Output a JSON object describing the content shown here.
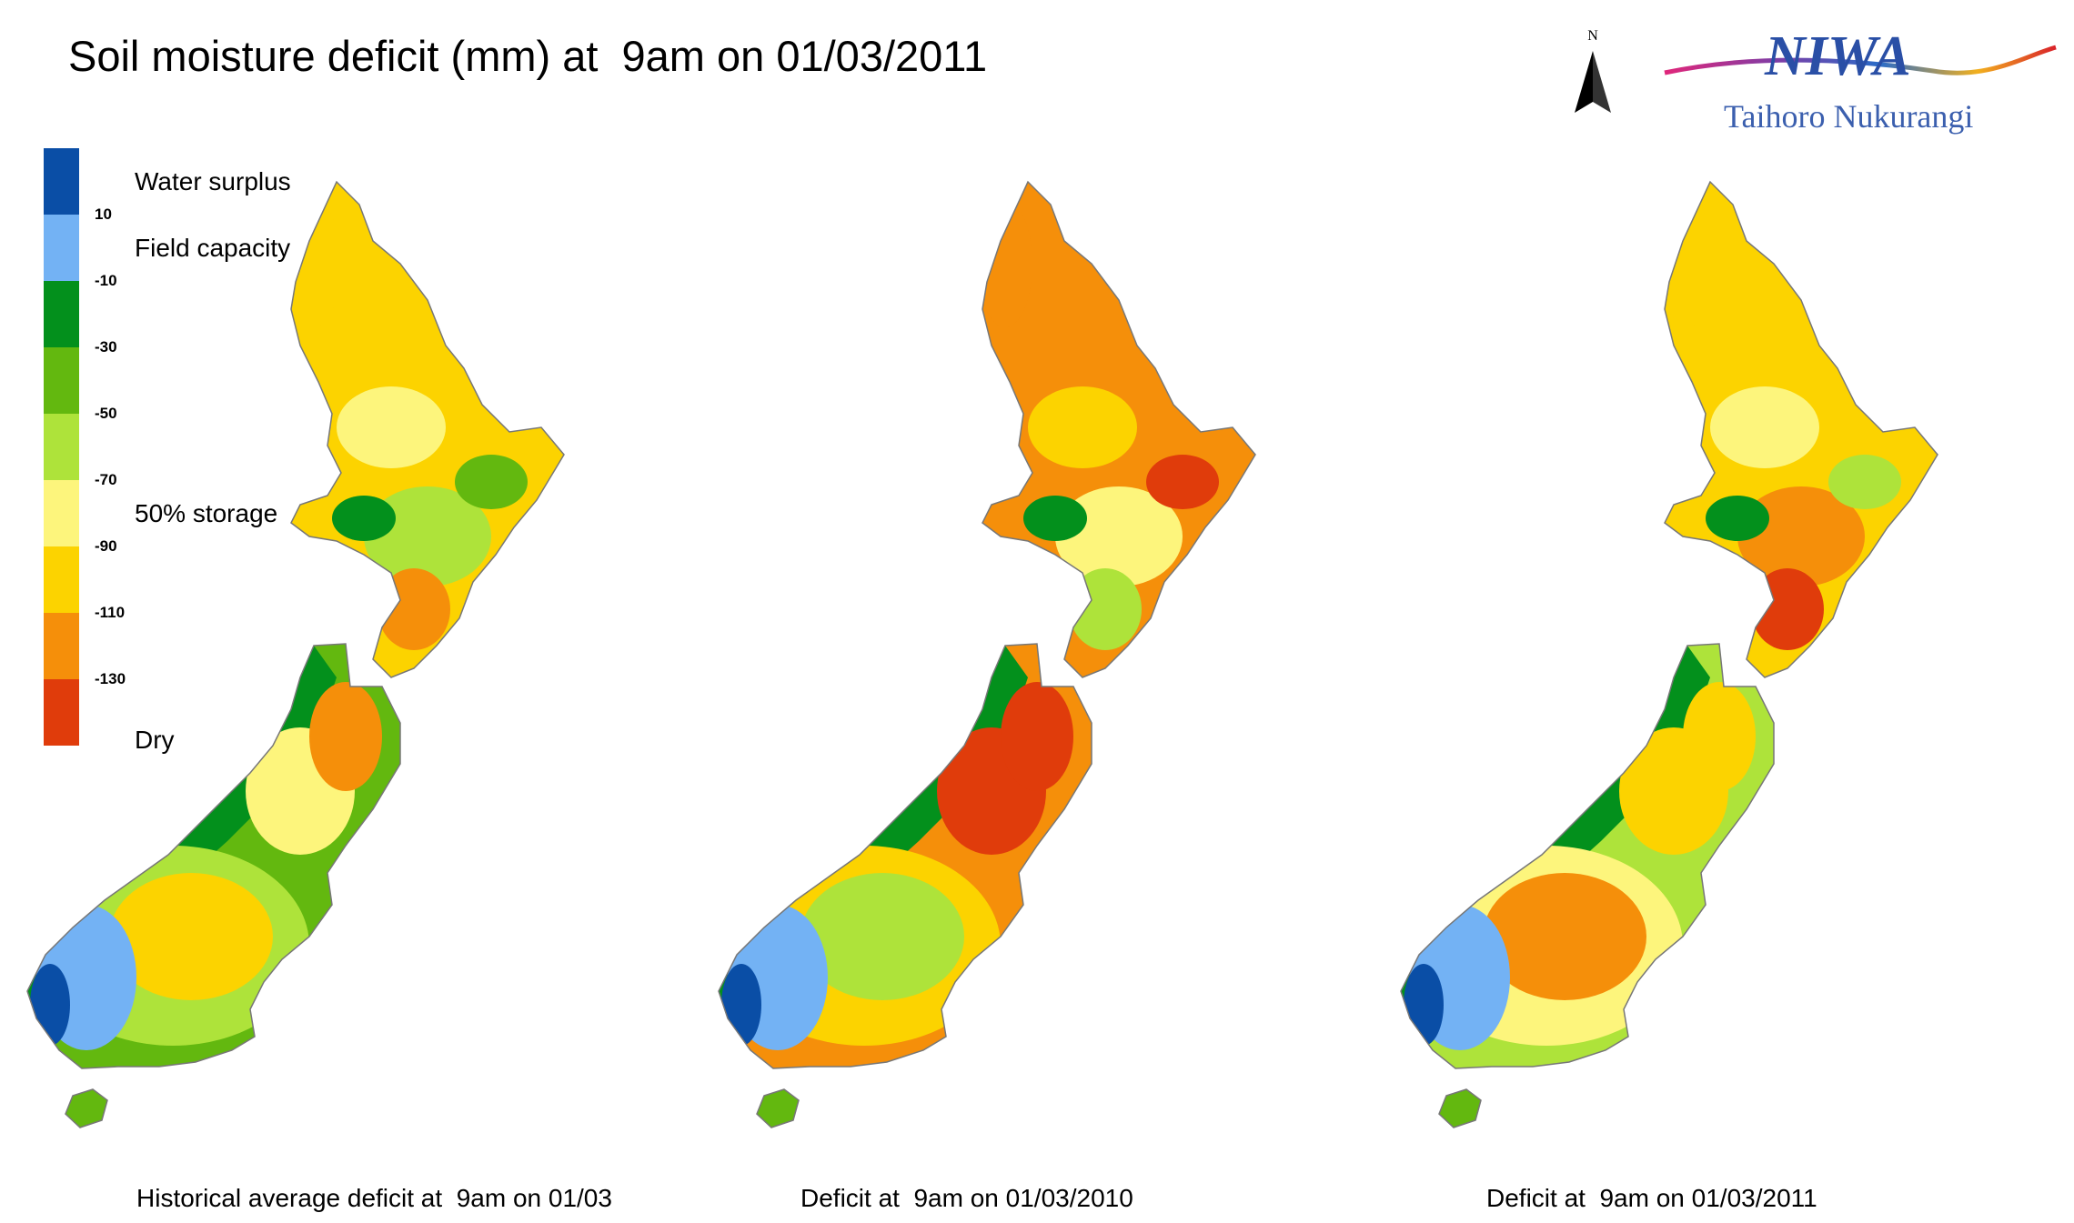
{
  "title": "Soil moisture deficit (mm) at  9am on 01/03/2011",
  "north_label": "N",
  "logo": {
    "text": "NIWA",
    "subtitle": "Taihoro Nukurangi"
  },
  "legend": {
    "swatches": [
      {
        "color": "#0a4ea6"
      },
      {
        "color": "#73b2f4"
      },
      {
        "color": "#03901c"
      },
      {
        "color": "#63b80f"
      },
      {
        "color": "#aee33a"
      },
      {
        "color": "#fdf57c"
      },
      {
        "color": "#fcd300"
      },
      {
        "color": "#f58f0a"
      },
      {
        "color": "#e03c0b"
      }
    ],
    "ticks": [
      "10",
      "-10",
      "-30",
      "-50",
      "-70",
      "-90",
      "-110",
      "-130"
    ],
    "labels": [
      {
        "text": "Water surplus",
        "slot": 0
      },
      {
        "text": "Field capacity",
        "slot": 1
      },
      {
        "text": "50% storage",
        "slot": 5
      },
      {
        "text": "Dry",
        "slot": 9
      }
    ]
  },
  "maps": [
    {
      "caption": "Historical average deficit at  9am on 01/03",
      "north": [
        "#fcd300",
        "#fdf57c",
        "#aee33a",
        "#63b80f",
        "#03901c",
        "#f58f0a"
      ],
      "south": [
        "#63b80f",
        "#03901c",
        "#aee33a",
        "#fdf57c",
        "#fcd300",
        "#f58f0a",
        "#73b2f4",
        "#0a4ea6"
      ]
    },
    {
      "caption": "Deficit at  9am on 01/03/2010",
      "north": [
        "#f58f0a",
        "#fcd300",
        "#fdf57c",
        "#e03c0b",
        "#03901c",
        "#aee33a"
      ],
      "south": [
        "#f58f0a",
        "#03901c",
        "#fcd300",
        "#e03c0b",
        "#aee33a",
        "#e03c0b",
        "#73b2f4",
        "#0a4ea6"
      ]
    },
    {
      "caption": "Deficit at  9am on 01/03/2011",
      "north": [
        "#fcd300",
        "#fdf57c",
        "#f58f0a",
        "#aee33a",
        "#03901c",
        "#e03c0b"
      ],
      "south": [
        "#aee33a",
        "#03901c",
        "#fdf57c",
        "#fcd300",
        "#f58f0a",
        "#fcd300",
        "#73b2f4",
        "#0a4ea6"
      ]
    }
  ]
}
